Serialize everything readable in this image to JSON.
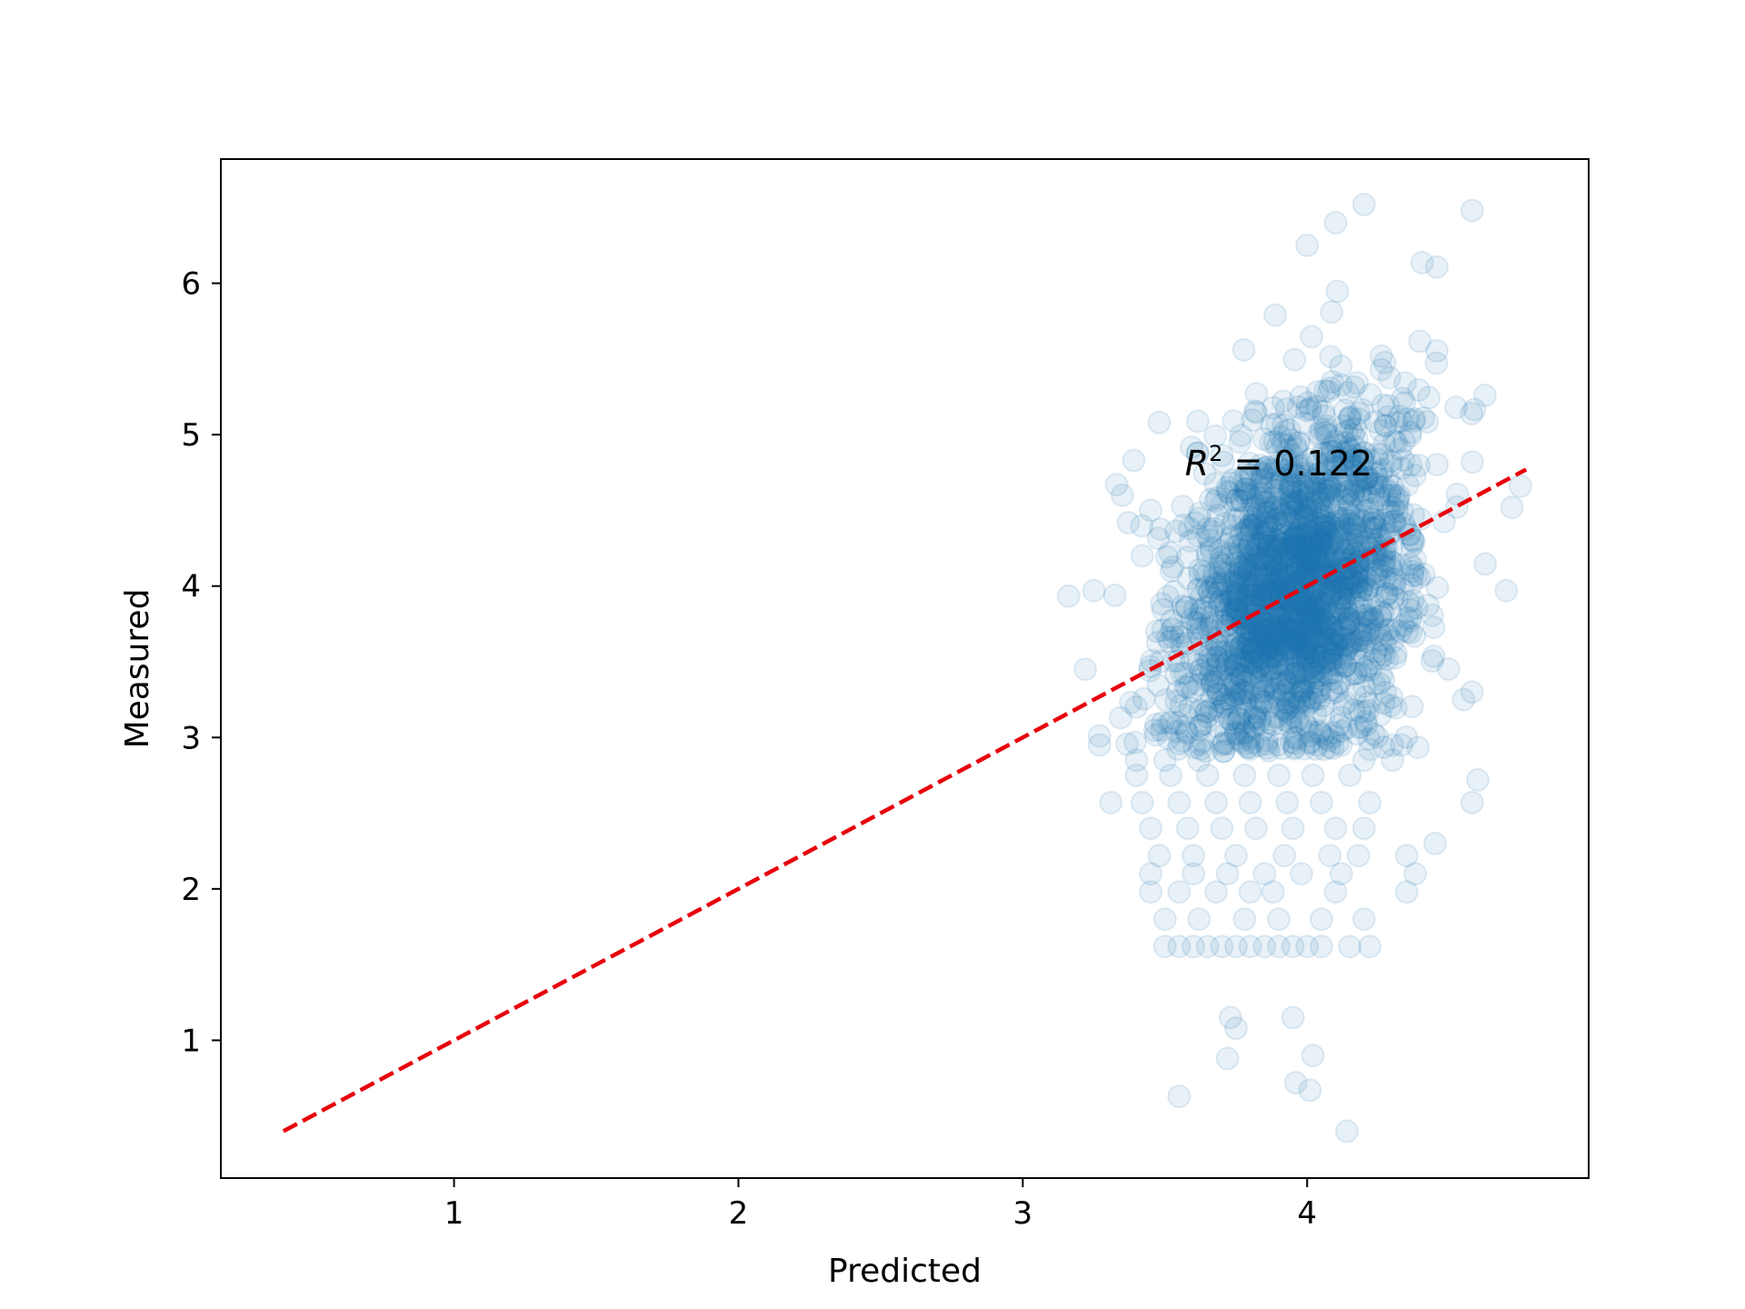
{
  "chart_data": {
    "type": "scatter",
    "title": "",
    "xlabel": "Predicted",
    "ylabel": "Measured",
    "xlim": [
      0.18,
      4.99
    ],
    "ylim": [
      0.09,
      6.82
    ],
    "xticks": [
      1,
      2,
      3,
      4
    ],
    "xtick_labels": [
      "1",
      "2",
      "3",
      "4"
    ],
    "yticks": [
      1,
      2,
      3,
      4,
      5,
      6
    ],
    "ytick_labels": [
      "1",
      "2",
      "3",
      "4",
      "5",
      "6"
    ],
    "grid": false,
    "annotation": {
      "text_base": "R",
      "text_sup": "2",
      "text_rest": " = 0.122",
      "x": 3.57,
      "y": 4.73
    },
    "reference_line": {
      "style": "dashed",
      "color": "#e8000b",
      "x": [
        0.4,
        4.77
      ],
      "y": [
        0.4,
        4.77
      ]
    },
    "series": [
      {
        "marker_color": "#1f77b4",
        "marker_fill_alpha": 0.1,
        "cluster": {
          "n_points": 2200,
          "x_mean": 3.96,
          "x_std": 0.2,
          "y_mean": 3.95,
          "y_std": 0.62,
          "correlation": 0.35
        },
        "points": [
          [
            3.55,
            0.63
          ],
          [
            3.73,
            1.15
          ],
          [
            3.75,
            1.08
          ],
          [
            3.72,
            0.88
          ],
          [
            3.95,
            1.15
          ],
          [
            4.02,
            0.9
          ],
          [
            3.96,
            0.72
          ],
          [
            4.01,
            0.67
          ],
          [
            4.14,
            0.4
          ],
          [
            4.58,
            6.48
          ],
          [
            4.2,
            6.52
          ],
          [
            4.1,
            6.4
          ],
          [
            4.0,
            6.25
          ],
          [
            4.72,
            4.52
          ],
          [
            4.75,
            4.66
          ],
          [
            4.7,
            3.97
          ],
          [
            4.55,
            3.25
          ],
          [
            4.58,
            3.3
          ],
          [
            4.45,
            2.3
          ],
          [
            4.58,
            2.57
          ],
          [
            4.6,
            2.72
          ],
          [
            3.22,
            3.45
          ],
          [
            3.27,
            3.01
          ],
          [
            3.27,
            2.95
          ],
          [
            3.31,
            2.57
          ],
          [
            3.35,
            4.6
          ],
          [
            3.33,
            4.67
          ],
          [
            3.39,
            4.83
          ],
          [
            3.25,
            3.97
          ],
          [
            3.42,
            4.2
          ],
          [
            3.45,
            4.5
          ],
          [
            3.48,
            5.08
          ],
          [
            3.6,
            1.62
          ],
          [
            3.7,
            1.62
          ],
          [
            3.8,
            1.62
          ],
          [
            3.9,
            1.62
          ],
          [
            4.0,
            1.62
          ],
          [
            4.15,
            1.62
          ],
          [
            4.22,
            1.62
          ],
          [
            3.5,
            1.62
          ],
          [
            3.55,
            1.62
          ],
          [
            3.65,
            1.62
          ],
          [
            3.75,
            1.62
          ],
          [
            3.85,
            1.62
          ],
          [
            3.95,
            1.62
          ],
          [
            4.05,
            1.62
          ],
          [
            3.5,
            1.8
          ],
          [
            3.62,
            1.8
          ],
          [
            3.78,
            1.8
          ],
          [
            3.9,
            1.8
          ],
          [
            4.05,
            1.8
          ],
          [
            4.2,
            1.8
          ],
          [
            3.45,
            1.98
          ],
          [
            3.55,
            1.98
          ],
          [
            3.68,
            1.98
          ],
          [
            3.8,
            1.98
          ],
          [
            3.88,
            1.98
          ],
          [
            4.1,
            1.98
          ],
          [
            4.35,
            1.98
          ],
          [
            4.38,
            2.1
          ],
          [
            3.45,
            2.1
          ],
          [
            3.6,
            2.1
          ],
          [
            3.72,
            2.1
          ],
          [
            3.85,
            2.1
          ],
          [
            3.98,
            2.1
          ],
          [
            4.12,
            2.1
          ],
          [
            4.35,
            2.22
          ],
          [
            3.48,
            2.22
          ],
          [
            3.6,
            2.22
          ],
          [
            3.75,
            2.22
          ],
          [
            3.92,
            2.22
          ],
          [
            4.08,
            2.22
          ],
          [
            4.18,
            2.22
          ],
          [
            3.45,
            2.4
          ],
          [
            3.58,
            2.4
          ],
          [
            3.7,
            2.4
          ],
          [
            3.82,
            2.4
          ],
          [
            3.95,
            2.4
          ],
          [
            4.1,
            2.4
          ],
          [
            4.2,
            2.4
          ],
          [
            3.42,
            2.57
          ],
          [
            3.55,
            2.57
          ],
          [
            3.68,
            2.57
          ],
          [
            3.8,
            2.57
          ],
          [
            3.93,
            2.57
          ],
          [
            4.05,
            2.57
          ],
          [
            4.22,
            2.57
          ],
          [
            3.4,
            2.75
          ],
          [
            3.52,
            2.75
          ],
          [
            3.65,
            2.75
          ],
          [
            3.78,
            2.75
          ],
          [
            3.9,
            2.75
          ],
          [
            4.02,
            2.75
          ],
          [
            4.15,
            2.75
          ],
          [
            3.4,
            2.85
          ],
          [
            3.5,
            2.85
          ],
          [
            3.62,
            2.85
          ],
          [
            4.2,
            2.85
          ],
          [
            4.3,
            2.85
          ]
        ]
      }
    ]
  }
}
